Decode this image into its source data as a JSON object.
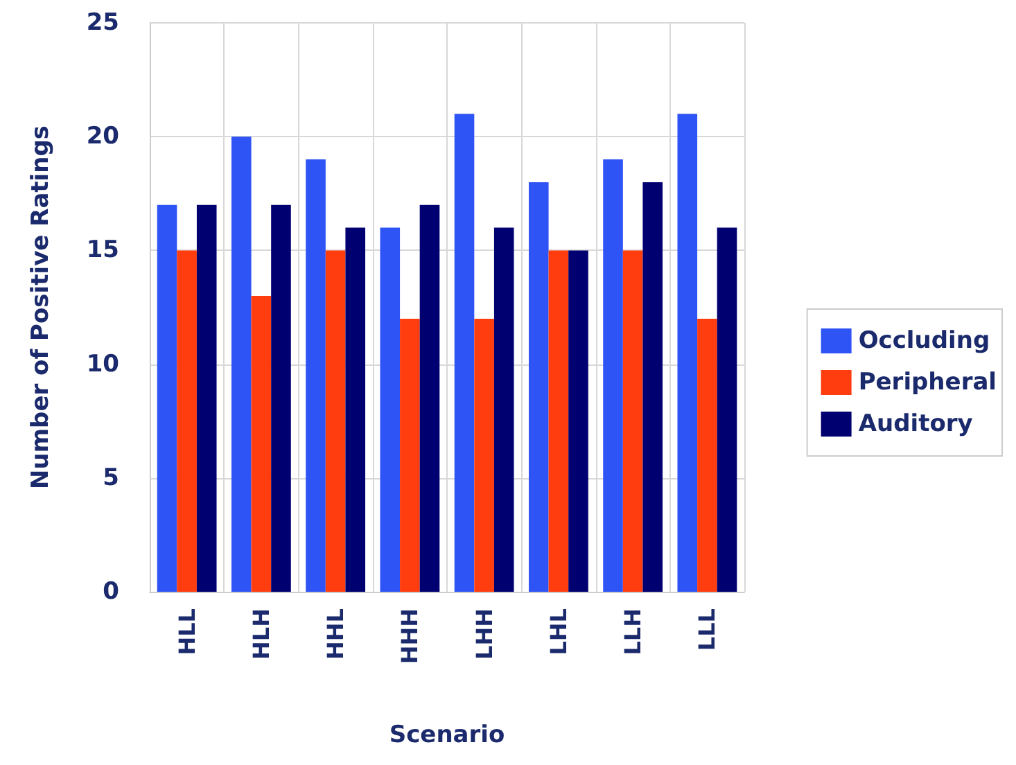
{
  "chart_data": {
    "type": "bar",
    "xlabel": "Scenario",
    "ylabel": "Number of Positive Ratings",
    "categories": [
      "HLL",
      "HLH",
      "HHL",
      "HHH",
      "LHH",
      "LHL",
      "LLH",
      "LLL"
    ],
    "series": [
      {
        "name": "Occluding",
        "color": "#2f54f5",
        "values": [
          17,
          20,
          19,
          16,
          21,
          18,
          19,
          21
        ]
      },
      {
        "name": "Peripheral",
        "color": "#ff3d0f",
        "values": [
          15,
          13,
          15,
          12,
          12,
          15,
          15,
          12
        ]
      },
      {
        "name": "Auditory",
        "color": "#000070",
        "values": [
          17,
          17,
          16,
          17,
          16,
          15,
          18,
          16
        ]
      }
    ],
    "ylim": [
      0,
      25
    ],
    "yticks": [
      0,
      5,
      10,
      15,
      20,
      25
    ],
    "grid": true,
    "legend": "right"
  }
}
